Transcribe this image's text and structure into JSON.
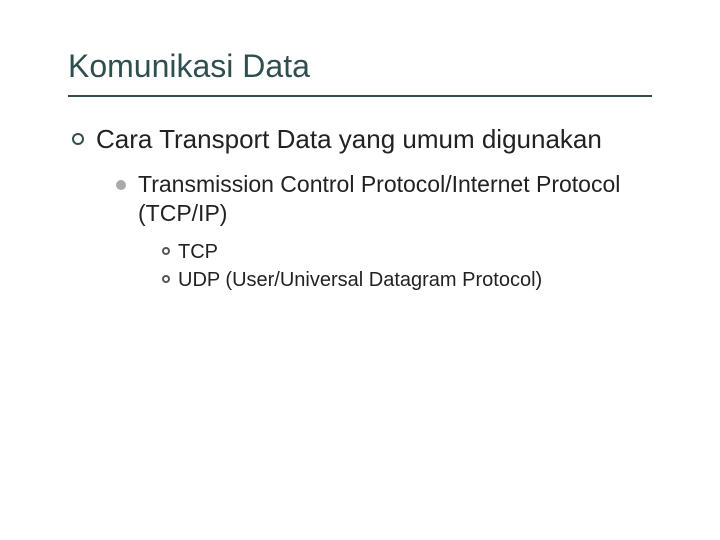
{
  "slide": {
    "title": "Komunikasi Data",
    "title_color": "#2f4f4f",
    "title_fontsize": 32,
    "hr_color": "#2f4f4f",
    "background_color": "#ffffff",
    "body_color": "#222222",
    "bullets": {
      "l1": {
        "text": "Cara Transport Data yang umum digunakan",
        "bullet_style": "open-circle",
        "bullet_color": "#2f4f4f",
        "fontsize": 26
      },
      "l2": {
        "text": "Transmission Control Protocol/Internet Protocol (TCP/IP)",
        "bullet_style": "filled-dot",
        "bullet_color": "#a9a9a9",
        "fontsize": 23
      },
      "l3a": {
        "text": "TCP",
        "bullet_style": "open-circle-small",
        "bullet_color": "#555555",
        "fontsize": 20
      },
      "l3b": {
        "text": "UDP (User/Universal Datagram Protocol)",
        "bullet_style": "open-circle-small",
        "bullet_color": "#555555",
        "fontsize": 20
      }
    }
  }
}
